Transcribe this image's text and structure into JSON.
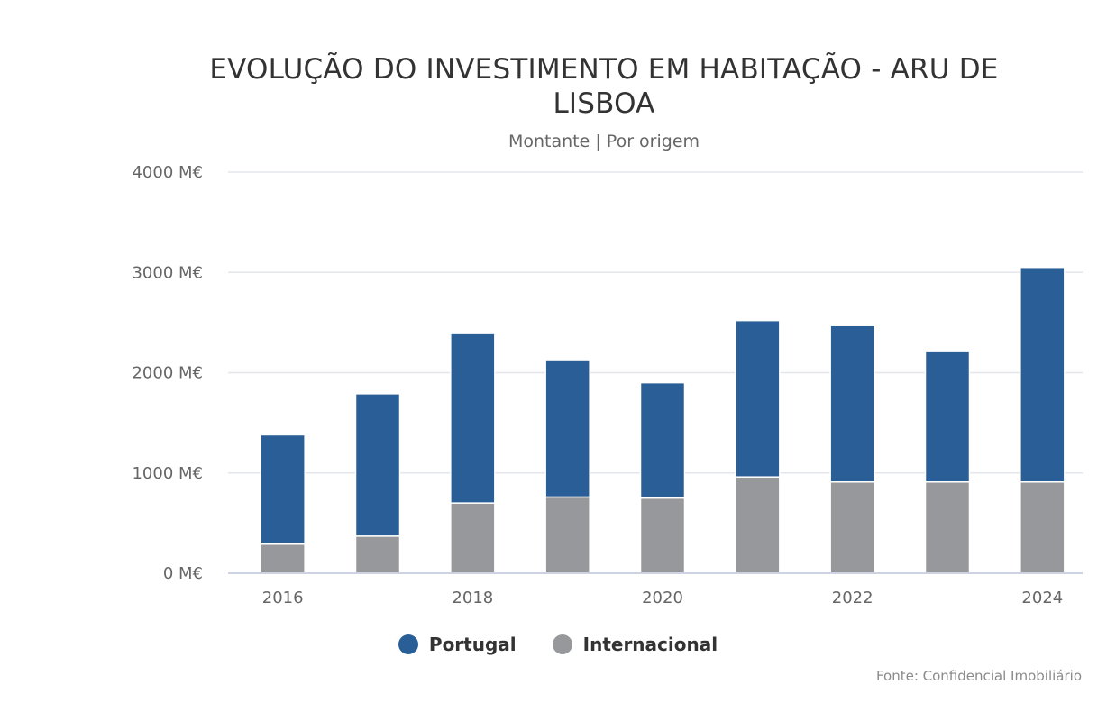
{
  "chart_data": {
    "type": "bar",
    "stacked": true,
    "title": "EVOLUÇÃO DO INVESTIMENTO EM HABITAÇÃO - ARU DE LISBOA",
    "title_lines": [
      "EVOLUÇÃO DO INVESTIMENTO EM HABITAÇÃO - ARU DE",
      "LISBOA"
    ],
    "subtitle": "Montante | Por origem",
    "categories": [
      "2016",
      "2017",
      "2018",
      "2019",
      "2020",
      "2021",
      "2022",
      "2023",
      "2024"
    ],
    "x_tick_labels": [
      "2016",
      "2018",
      "2020",
      "2022",
      "2024"
    ],
    "y_tick_labels": [
      "0 M€",
      "1000 M€",
      "2000 M€",
      "3000 M€",
      "4000 M€"
    ],
    "y_ticks": [
      0,
      1000,
      2000,
      3000,
      4000
    ],
    "ylim": [
      0,
      4000
    ],
    "series": [
      {
        "name": "Internacional",
        "color": "#97989b",
        "values": [
          290,
          370,
          700,
          760,
          750,
          960,
          910,
          910,
          910
        ]
      },
      {
        "name": "Portugal",
        "color": "#295e96",
        "values": [
          1090,
          1420,
          1690,
          1370,
          1150,
          1560,
          1560,
          1300,
          2140
        ]
      }
    ],
    "legend": [
      "Portugal",
      "Internacional"
    ],
    "legend_position": "bottom-center",
    "grid": true,
    "source": "Fonte: Confidencial Imobiliário"
  }
}
